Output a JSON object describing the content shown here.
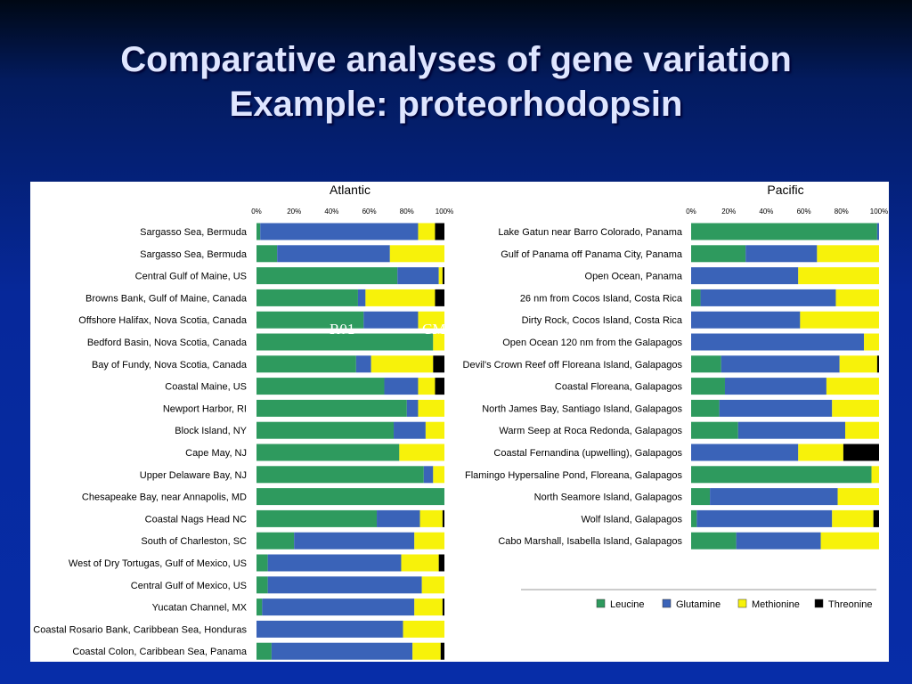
{
  "slide": {
    "title_line1": "Comparative analyses of gene variation",
    "title_line2": "Example: proteorhodopsin"
  },
  "colors": {
    "Leucine": "#2e9a5e",
    "Glutamine": "#3a63b8",
    "Methionine": "#f7f20a",
    "Threonine": "#000000"
  },
  "chart_data": [
    {
      "type": "bar",
      "orientation": "horizontal",
      "stacked": "percent",
      "title": "Atlantic",
      "xlim": [
        0,
        100
      ],
      "x_ticks": [
        "0%",
        "20%",
        "40%",
        "60%",
        "80%",
        "100%"
      ],
      "grid": false,
      "categories": [
        "Sargasso Sea, Bermuda",
        "Sargasso Sea, Bermuda",
        "Central Gulf of Maine, US",
        "Browns Bank, Gulf of Maine, Canada",
        "Offshore Halifax, Nova Scotia, Canada",
        "Bedford Basin, Nova Scotia, Canada",
        "Bay of Fundy, Nova Scotia, Canada",
        "Coastal Maine, US",
        "Newport Harbor, RI",
        "Block Island, NY",
        "Cape May, NJ",
        "Upper Delaware Bay, NJ",
        "Chesapeake Bay, near Annapolis, MD",
        "Coastal Nags Head NC",
        "South of Charleston, SC",
        "West of Dry Tortugas, Gulf of Mexico, US",
        "Central Gulf of Mexico, US",
        "Yucatan Channel, MX",
        "Coastal Rosario Bank, Caribbean Sea, Honduras",
        "Coastal Colon, Caribbean Sea, Panama"
      ],
      "series": [
        {
          "name": "Leucine",
          "values": [
            2,
            11,
            75,
            54,
            57,
            94,
            53,
            68,
            80,
            73,
            76,
            89,
            100,
            64,
            20,
            6,
            6,
            3,
            0,
            8
          ]
        },
        {
          "name": "Glutamine",
          "values": [
            84,
            60,
            22,
            4,
            29,
            0,
            8,
            18,
            6,
            17,
            0,
            5,
            0,
            23,
            64,
            71,
            82,
            81,
            78,
            75
          ]
        },
        {
          "name": "Methionine",
          "values": [
            9,
            29,
            2,
            37,
            14,
            6,
            33,
            9,
            14,
            10,
            24,
            6,
            0,
            12,
            16,
            20,
            12,
            15,
            22,
            15
          ]
        },
        {
          "name": "Threonine",
          "values": [
            5,
            0,
            1,
            5,
            0,
            0,
            6,
            5,
            0,
            0,
            0,
            0,
            0,
            1,
            0,
            3,
            0,
            1,
            0,
            2
          ]
        }
      ],
      "annotation": [
        "R01",
        "CM"
      ]
    },
    {
      "type": "bar",
      "orientation": "horizontal",
      "stacked": "percent",
      "title": "Pacific",
      "xlim": [
        0,
        100
      ],
      "x_ticks": [
        "0%",
        "20%",
        "40%",
        "60%",
        "80%",
        "100%"
      ],
      "grid": false,
      "categories": [
        "Lake Gatun near Barro Colorado, Panama",
        "Gulf of Panama off Panama City, Panama",
        "Open Ocean, Panama",
        "26 nm from Cocos Island, Costa Rica",
        "Dirty Rock, Cocos Island, Costa Rica",
        "Open Ocean 120 nm from the Galapagos",
        "Devil's Crown Reef off Floreana Island, Galapagos",
        "Coastal Floreana, Galapagos",
        "North James Bay, Santiago Island, Galapagos",
        "Warm Seep at Roca Redonda, Galapagos",
        "Coastal Fernandina (upwelling), Galapagos",
        "Flamingo Hypersaline Pond, Floreana, Galapagos",
        "North Seamore Island, Galapagos",
        "Wolf Island, Galapagos",
        "Cabo Marshall, Isabella Island, Galapagos"
      ],
      "series": [
        {
          "name": "Leucine",
          "values": [
            99,
            29,
            0,
            5,
            0,
            0,
            16,
            18,
            15,
            25,
            0,
            96,
            10,
            3,
            24
          ]
        },
        {
          "name": "Glutamine",
          "values": [
            1,
            38,
            57,
            72,
            58,
            92,
            63,
            54,
            60,
            57,
            57,
            0,
            68,
            72,
            45
          ]
        },
        {
          "name": "Methionine",
          "values": [
            0,
            33,
            43,
            23,
            42,
            8,
            20,
            28,
            25,
            18,
            24,
            4,
            22,
            22,
            31
          ]
        },
        {
          "name": "Threonine",
          "values": [
            0,
            0,
            0,
            0,
            0,
            0,
            1,
            0,
            0,
            0,
            19,
            0,
            0,
            3,
            0
          ]
        }
      ]
    }
  ],
  "legend": [
    "Leucine",
    "Glutamine",
    "Methionine",
    "Threonine"
  ]
}
